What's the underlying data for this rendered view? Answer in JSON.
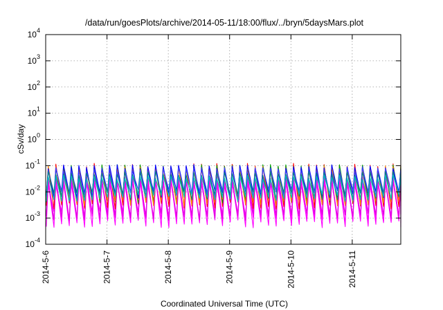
{
  "chart_data": {
    "type": "line",
    "title": "/data/run/goesPlots/archive/2014-05-11/18:00/flux/../bryn/5daysMars.plot",
    "xlabel": "Coordinated Universal Time (UTC)",
    "ylabel": "cSv/day",
    "yscale": "log",
    "ylim": [
      0.0001,
      10000
    ],
    "xlim": [
      "2014-05-06 00:00",
      "2014-05-11 19:00"
    ],
    "x_ticks": [
      "2014-5-6",
      "2014-5-7",
      "2014-5-8",
      "2014-5-9",
      "2014-5-10",
      "2014-5-11"
    ],
    "y_ticks": [
      {
        "base": "10",
        "exp": "-4"
      },
      {
        "base": "10",
        "exp": "-3"
      },
      {
        "base": "10",
        "exp": "-2"
      },
      {
        "base": "10",
        "exp": "-1"
      },
      {
        "base": "10",
        "exp": "0"
      },
      {
        "base": "10",
        "exp": "1"
      },
      {
        "base": "10",
        "exp": "2"
      },
      {
        "base": "10",
        "exp": "3"
      },
      {
        "base": "10",
        "exp": "4"
      }
    ],
    "grid": true,
    "legend": "none",
    "pattern": {
      "period_hours": 3,
      "peak_range": [
        0.05,
        0.1
      ],
      "trough_range": [
        0.0005,
        0.003
      ]
    },
    "series": [
      {
        "color": "#ff00ff",
        "peak": 0.03,
        "trough": 0.0006
      },
      {
        "color": "#ff00ff",
        "peak": 0.025,
        "trough": 0.0009
      },
      {
        "color": "#ff00ff",
        "peak": 0.02,
        "trough": 0.0013
      },
      {
        "color": "#e000e0",
        "peak": 0.035,
        "trough": 0.0011
      },
      {
        "color": "#ff0000",
        "peak": 0.1,
        "trough": 0.003
      },
      {
        "color": "#00a000",
        "peak": 0.09,
        "trough": 0.005
      },
      {
        "color": "#ff8000",
        "peak": 0.08,
        "trough": 0.004
      },
      {
        "color": "#0000ff",
        "peak": 0.09,
        "trough": 0.008
      },
      {
        "color": "#4040ff",
        "peak": 0.07,
        "trough": 0.009
      },
      {
        "color": "#008080",
        "peak": 0.05,
        "trough": 0.007
      },
      {
        "color": "#00c0c0",
        "peak": 0.035,
        "trough": 0.006
      }
    ]
  }
}
